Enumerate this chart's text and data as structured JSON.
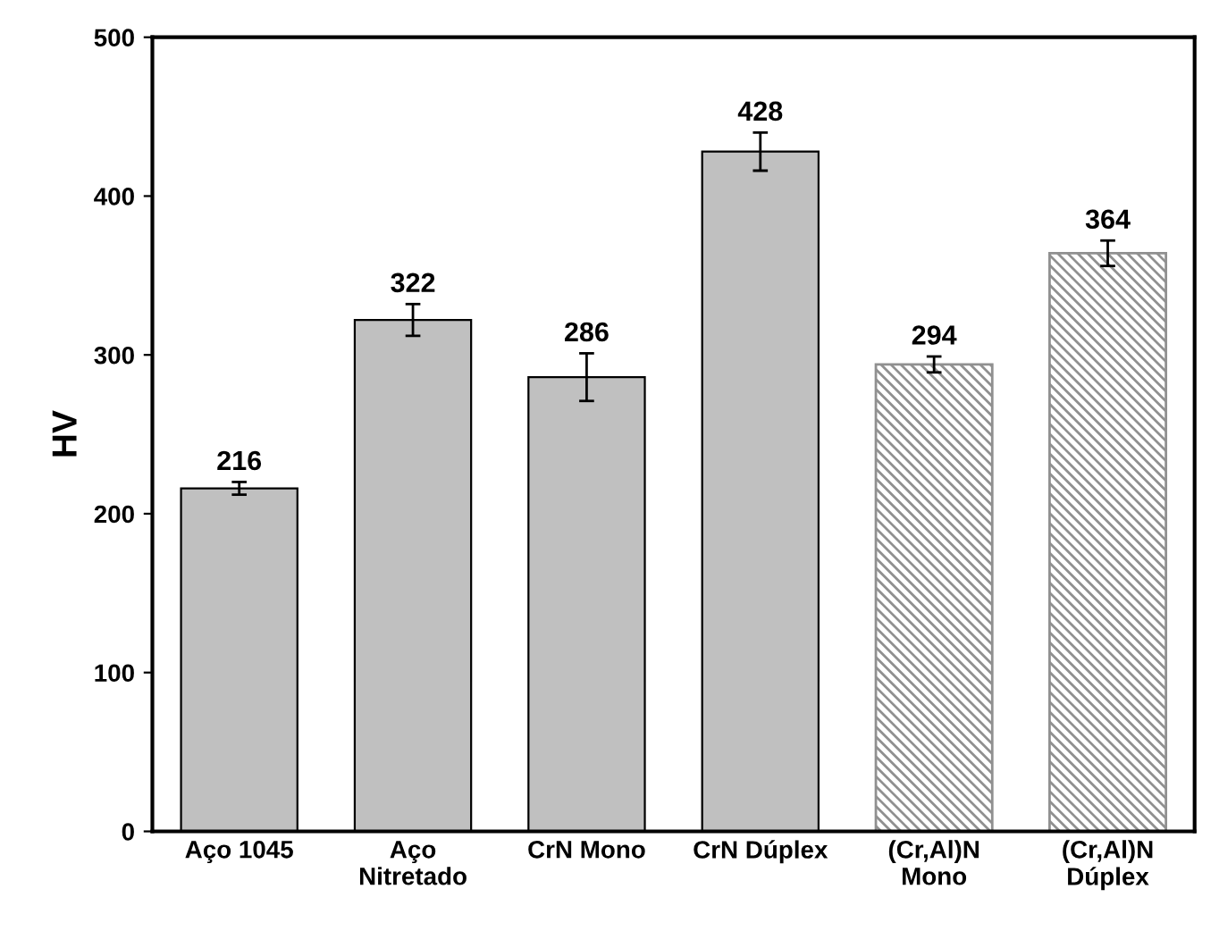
{
  "chart_data": {
    "type": "bar",
    "ylabel": "HV",
    "categories": [
      "Aço 1045",
      "Aço\nNitretado",
      "CrN Mono",
      "CrN Dúplex",
      "(Cr,Al)N\nMono",
      "(Cr,Al)N\nDúplex"
    ],
    "series": [
      {
        "color": "#c0c0c0",
        "values": [
          216,
          322,
          286,
          428,
          null,
          null
        ],
        "errors": [
          4,
          10,
          15,
          12,
          null,
          null
        ]
      },
      {
        "color": "#909090",
        "values": [
          null,
          null,
          null,
          null,
          294,
          364
        ],
        "errors": [
          null,
          null,
          null,
          null,
          5,
          8
        ]
      }
    ],
    "data_labels": true,
    "ylim": [
      0,
      500
    ],
    "yticks": [
      0,
      100,
      200,
      300,
      400,
      500
    ],
    "grid": false
  }
}
